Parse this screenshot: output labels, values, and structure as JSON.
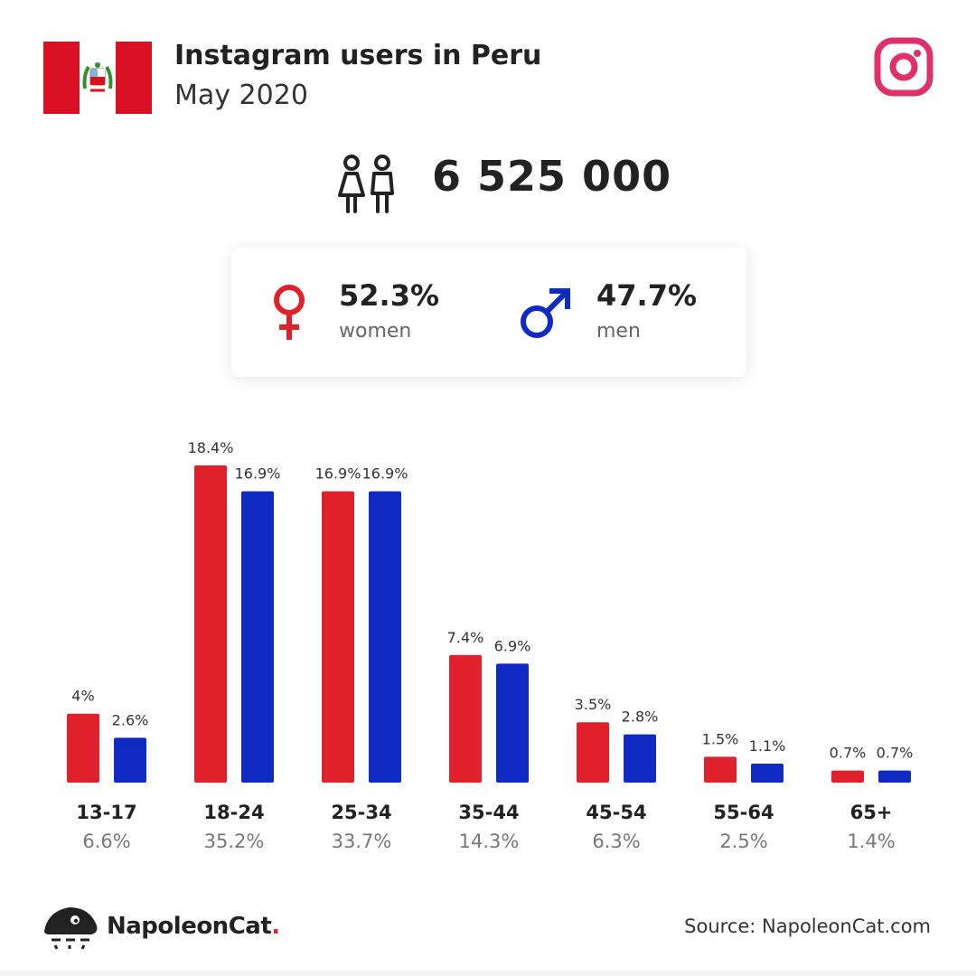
{
  "header": {
    "title": "Instagram users in Peru",
    "subtitle": "May 2020",
    "flag_icon": "peru-flag-icon",
    "platform_icon": "instagram-icon"
  },
  "total": {
    "value": "6 525 000",
    "icon": "people-icon"
  },
  "gender": {
    "women": {
      "pct": "52.3%",
      "label": "women",
      "icon": "female-symbol-icon",
      "color": "#e0202a"
    },
    "men": {
      "pct": "47.7%",
      "label": "men",
      "icon": "male-symbol-icon",
      "color": "#0f2bc4"
    }
  },
  "chart_data": {
    "type": "bar",
    "categories": [
      "13-17",
      "18-24",
      "25-34",
      "35-44",
      "45-54",
      "55-64",
      "65+"
    ],
    "category_totals": [
      "6.6%",
      "35.2%",
      "33.7%",
      "14.3%",
      "6.3%",
      "2.5%",
      "1.4%"
    ],
    "series": [
      {
        "color": "#e0202a",
        "values": [
          4,
          18.4,
          16.9,
          7.4,
          3.5,
          1.5,
          0.7
        ],
        "labels": [
          "4%",
          "18.4%",
          "16.9%",
          "7.4%",
          "3.5%",
          "1.5%",
          "0.7%"
        ]
      },
      {
        "color": "#0f2bc4",
        "values": [
          2.6,
          16.9,
          16.9,
          6.9,
          2.8,
          1.1,
          0.7
        ],
        "labels": [
          "2.6%",
          "16.9%",
          "16.9%",
          "6.9%",
          "2.8%",
          "1.1%",
          "0.7%"
        ]
      }
    ],
    "ylim": [
      0,
      18.4
    ],
    "grid": false
  },
  "footer": {
    "brand": "NapoleonCat",
    "brand_dot": ".",
    "source": "Source: NapoleonCat.com",
    "logo_icon": "napoleoncat-logo-icon"
  }
}
